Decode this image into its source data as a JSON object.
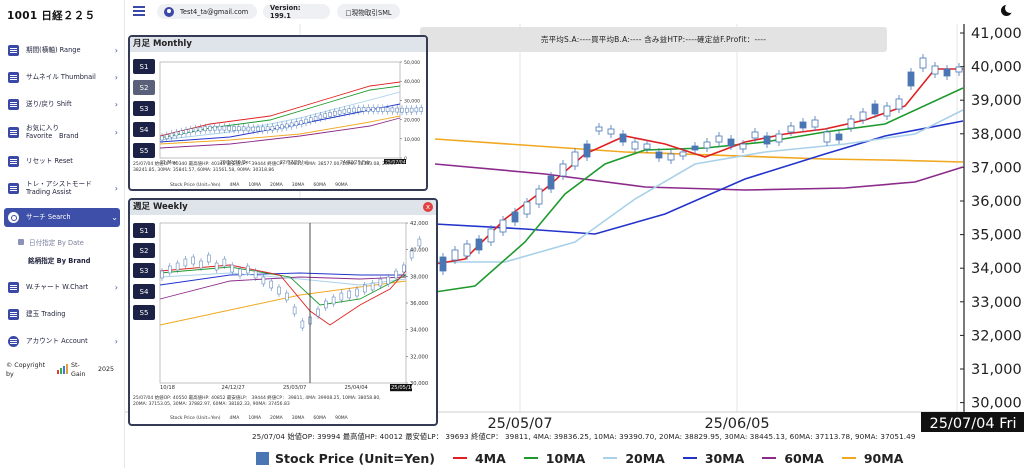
{
  "sidebar": {
    "brand": "1001 日経２２５",
    "items": [
      {
        "label": "期間(横軸) Range"
      },
      {
        "label": "サムネイル Thumbnail"
      },
      {
        "label": "送り/戻り Shift"
      },
      {
        "label": "お気に入り\nFavorite　Brand"
      },
      {
        "label": "リセット Reset"
      },
      {
        "label": "トレ・アシストモード\nTrading Assist"
      },
      {
        "label": "サーチ Search"
      },
      {
        "label": "W.チャート W.Chart"
      },
      {
        "label": "建玉 Trading"
      },
      {
        "label": "アカウント Account"
      }
    ],
    "sub_items": [
      {
        "label": "日付指定 By Date"
      },
      {
        "label": "銘柄指定 By Brand"
      }
    ],
    "copyright": "© Copyright by",
    "company": "St-Gain",
    "year": "2025"
  },
  "topbar": {
    "user_email": "Test4_ta@gmail.com",
    "version": "Version: 199.1",
    "mode_label": "□現物取引SML"
  },
  "summary": "売平均S.A:----買平均B.A:---- 含み益HTP:----確定益F.Profit：----",
  "main_chart": {
    "y_ticks": [
      "41,000",
      "40,000",
      "39,000",
      "38,000",
      "37,000",
      "36,000",
      "35,000",
      "34,000",
      "33,000",
      "32,000",
      "31,000",
      "30,000"
    ],
    "x_ticks": [
      "25/05/07",
      "25/06/05",
      "25/07/04 Fri"
    ],
    "ohlc_text": "25/07/04 始値OP: 39994 最高値HP: 40012 最安値LP： 39693 終値CP： 39811, 4MA: 39836.25, 10MA: 39390.70, 20MA: 38829.95, 30MA: 38445.13, 60MA: 37113.78, 90MA: 37051.49"
  },
  "legend": [
    {
      "label": "Stock Price (Unit=Yen)",
      "color": "#4a77b4"
    },
    {
      "label": "4MA",
      "color": "#e02020"
    },
    {
      "label": "10MA",
      "color": "#1e9a2e"
    },
    {
      "label": "20MA",
      "color": "#a9d1ea"
    },
    {
      "label": "30MA",
      "color": "#2233cc"
    },
    {
      "label": "60MA",
      "color": "#8b2a8b"
    },
    {
      "label": "90MA",
      "color": "#f0a820"
    }
  ],
  "monthly": {
    "title": "月足 Monthly",
    "buttons": [
      "S1",
      "S2",
      "S3",
      "S4",
      "S5"
    ],
    "y_ticks": [
      "50,000",
      "40,000",
      "30,000",
      "20,000",
      "10,000",
      "0"
    ],
    "x_ticks": [
      "21 May",
      "20/12/30 Dec",
      "22/07/29 Jul",
      "24/02/29 Feb",
      "25/07/04"
    ],
    "ohlc_line1": "25/07/04 始値OP: 40340 最高値HP: 40340 最安値LP： 39444 終値CP： 39811, 4MA: 38577.00, 10MA: 38383.08, 20MA:",
    "ohlc_line2": "38241.85, 30MA: 35841.57, 60MA: 31561.58, 90MA: 30318.86",
    "legend": "Stock Price (Unit=Yen)　　4MA　　10MA　　20MA　　30MA　　60MA　　90MA"
  },
  "weekly": {
    "title": "週足 Weekly",
    "close": "x",
    "buttons": [
      "S1",
      "S2",
      "S3",
      "S4",
      "S5"
    ],
    "y_ticks": [
      "42,000",
      "40,000",
      "38,000",
      "36,000",
      "34,000",
      "32,000",
      "30,000"
    ],
    "x_ticks": [
      "10/18",
      "24/12/27",
      "25/03/07",
      "25/04/04",
      "25/05/16"
    ],
    "ohlc_line1": "25/07/04 始値OP: 40550 最高値HP: 40852 最安値LP： 39444 終値CP： 39811, 4MA: 39908.25, 10MA: 38058.80,",
    "ohlc_line2": "20MA: 37153.05, 30MA: 37882.97, 60MA: 38182.33, 90MA: 37456.83",
    "legend": "Stock Price (Unit=Yen)　　4MA　　10MA　　20MA　　30MA　　60MA　　90MA"
  }
}
